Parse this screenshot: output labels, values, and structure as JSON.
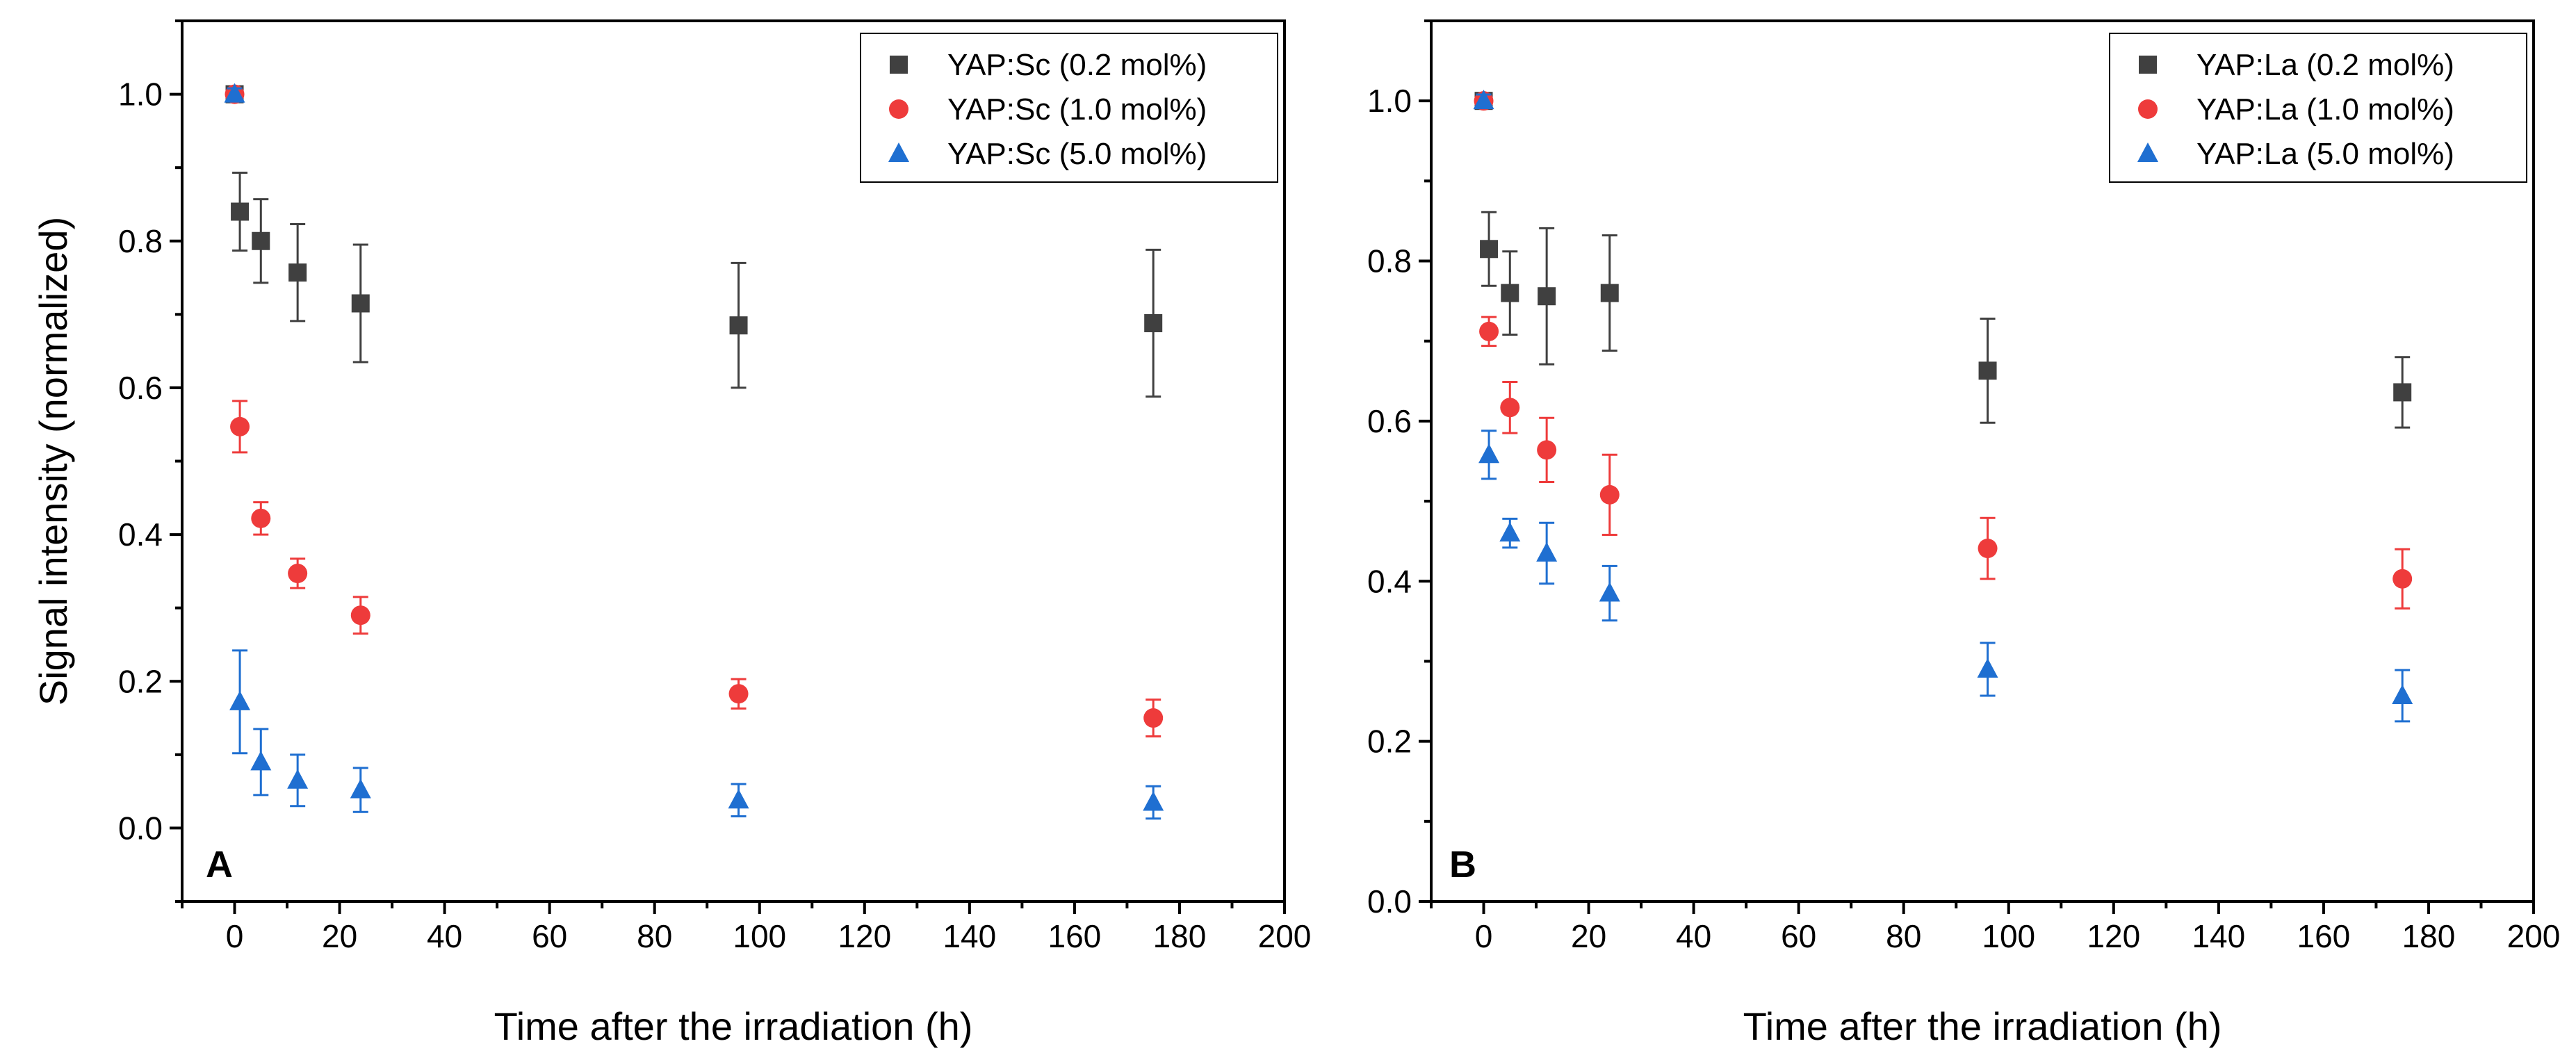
{
  "chart_data": [
    {
      "panel_label": "A",
      "type": "scatter",
      "xlabel": "Time after the irradiation (h)",
      "ylabel": "Signal intensity (normalized)",
      "xlim": [
        -10,
        200
      ],
      "ylim": [
        -0.1,
        1.1
      ],
      "xticks": [
        0,
        20,
        40,
        60,
        80,
        100,
        120,
        140,
        160,
        180,
        200
      ],
      "yticks": [
        0.0,
        0.2,
        0.4,
        0.6,
        0.8,
        1.0
      ],
      "ytick_format": 1,
      "grid": false,
      "legend_position": "top-right",
      "series": [
        {
          "name": "YAP:Sc (0.2 mol%)",
          "marker": "square",
          "color": "#404040",
          "points": [
            {
              "x": 0,
              "y": 1.0,
              "err": 0.008
            },
            {
              "x": 1,
              "y": 0.84,
              "err": 0.053
            },
            {
              "x": 5,
              "y": 0.8,
              "err": 0.057
            },
            {
              "x": 12,
              "y": 0.757,
              "err": 0.066
            },
            {
              "x": 24,
              "y": 0.715,
              "err": 0.08
            },
            {
              "x": 96,
              "y": 0.685,
              "err": 0.085
            },
            {
              "x": 175,
              "y": 0.688,
              "err": 0.1
            }
          ]
        },
        {
          "name": "YAP:Sc (1.0 mol%)",
          "marker": "circle",
          "color": "#ee3b3b",
          "points": [
            {
              "x": 0,
              "y": 1.0,
              "err": 0.008
            },
            {
              "x": 1,
              "y": 0.547,
              "err": 0.035
            },
            {
              "x": 5,
              "y": 0.422,
              "err": 0.022
            },
            {
              "x": 12,
              "y": 0.347,
              "err": 0.02
            },
            {
              "x": 24,
              "y": 0.29,
              "err": 0.025
            },
            {
              "x": 96,
              "y": 0.183,
              "err": 0.02
            },
            {
              "x": 175,
              "y": 0.15,
              "err": 0.025
            }
          ]
        },
        {
          "name": "YAP:Sc (5.0 mol%)",
          "marker": "triangle",
          "color": "#1f6fd1",
          "points": [
            {
              "x": 0,
              "y": 1.0,
              "err": 0.008
            },
            {
              "x": 1,
              "y": 0.172,
              "err": 0.07
            },
            {
              "x": 5,
              "y": 0.09,
              "err": 0.045
            },
            {
              "x": 12,
              "y": 0.065,
              "err": 0.035
            },
            {
              "x": 24,
              "y": 0.052,
              "err": 0.03
            },
            {
              "x": 96,
              "y": 0.038,
              "err": 0.022
            },
            {
              "x": 175,
              "y": 0.035,
              "err": 0.022
            }
          ]
        }
      ]
    },
    {
      "panel_label": "B",
      "type": "scatter",
      "xlabel": "Time after the irradiation (h)",
      "ylabel": "",
      "xlim": [
        -10,
        200
      ],
      "ylim": [
        0.0,
        1.1
      ],
      "xticks": [
        0,
        20,
        40,
        60,
        80,
        100,
        120,
        140,
        160,
        180,
        200
      ],
      "yticks": [
        0.0,
        0.2,
        0.4,
        0.6,
        0.8,
        1.0
      ],
      "ytick_format": 1,
      "grid": false,
      "legend_position": "top-right",
      "series": [
        {
          "name": "YAP:La (0.2 mol%)",
          "marker": "square",
          "color": "#404040",
          "points": [
            {
              "x": 0,
              "y": 1.0,
              "err": 0.008
            },
            {
              "x": 1,
              "y": 0.815,
              "err": 0.046
            },
            {
              "x": 5,
              "y": 0.76,
              "err": 0.052
            },
            {
              "x": 12,
              "y": 0.756,
              "err": 0.085
            },
            {
              "x": 24,
              "y": 0.76,
              "err": 0.072
            },
            {
              "x": 96,
              "y": 0.663,
              "err": 0.065
            },
            {
              "x": 175,
              "y": 0.636,
              "err": 0.044
            }
          ]
        },
        {
          "name": "YAP:La (1.0 mol%)",
          "marker": "circle",
          "color": "#ee3b3b",
          "points": [
            {
              "x": 0,
              "y": 1.0,
              "err": 0.008
            },
            {
              "x": 1,
              "y": 0.712,
              "err": 0.018
            },
            {
              "x": 5,
              "y": 0.617,
              "err": 0.032
            },
            {
              "x": 12,
              "y": 0.564,
              "err": 0.04
            },
            {
              "x": 24,
              "y": 0.508,
              "err": 0.05
            },
            {
              "x": 96,
              "y": 0.441,
              "err": 0.038
            },
            {
              "x": 175,
              "y": 0.403,
              "err": 0.037
            }
          ]
        },
        {
          "name": "YAP:La (5.0 mol%)",
          "marker": "triangle",
          "color": "#1f6fd1",
          "points": [
            {
              "x": 0,
              "y": 1.0,
              "err": 0.008
            },
            {
              "x": 1,
              "y": 0.558,
              "err": 0.03
            },
            {
              "x": 5,
              "y": 0.46,
              "err": 0.018
            },
            {
              "x": 12,
              "y": 0.435,
              "err": 0.038
            },
            {
              "x": 24,
              "y": 0.385,
              "err": 0.034
            },
            {
              "x": 96,
              "y": 0.29,
              "err": 0.033
            },
            {
              "x": 175,
              "y": 0.257,
              "err": 0.032
            }
          ]
        }
      ]
    }
  ]
}
